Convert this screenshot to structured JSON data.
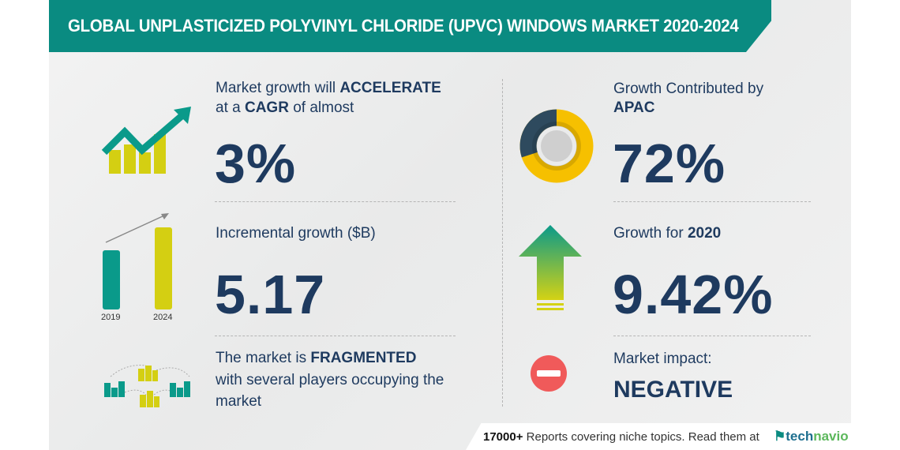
{
  "title": "GLOBAL UNPLASTICIZED POLYVINYL CHLORIDE (UPVC) WINDOWS MARKET 2020-2024",
  "left": {
    "cagr": {
      "line1_pre": "Market growth will ",
      "line1_bold": "ACCELERATE",
      "line2_pre": "at a ",
      "line2_bold": "CAGR",
      "line2_post": " of almost",
      "value": "3%"
    },
    "incremental": {
      "label": "Incremental growth ($B)",
      "value": "5.17",
      "years": [
        "2019",
        "2024"
      ]
    },
    "fragmented": {
      "line1_pre": "The market is ",
      "line1_bold": "FRAGMENTED",
      "line2": "with several players occupying the",
      "line3": "market"
    }
  },
  "right": {
    "region": {
      "line1": "Growth Contributed by",
      "line2_bold": "APAC",
      "value": "72%"
    },
    "yoy": {
      "label_pre": "Growth for ",
      "label_bold": "2020",
      "value": "9.42%"
    },
    "impact": {
      "label": "Market impact:",
      "value": "NEGATIVE"
    }
  },
  "footer": {
    "count": "17000+",
    "text": " Reports covering niche topics. Read them at",
    "logo_a": "tech",
    "logo_b": "navio"
  },
  "colors": {
    "teal": "#0a8b81",
    "yellow_green": "#d4cf12",
    "navy": "#1e3a5f",
    "donut_dark": "#2e4a5e",
    "donut_yellow": "#f6c000",
    "negative_red": "#f05a5a"
  }
}
